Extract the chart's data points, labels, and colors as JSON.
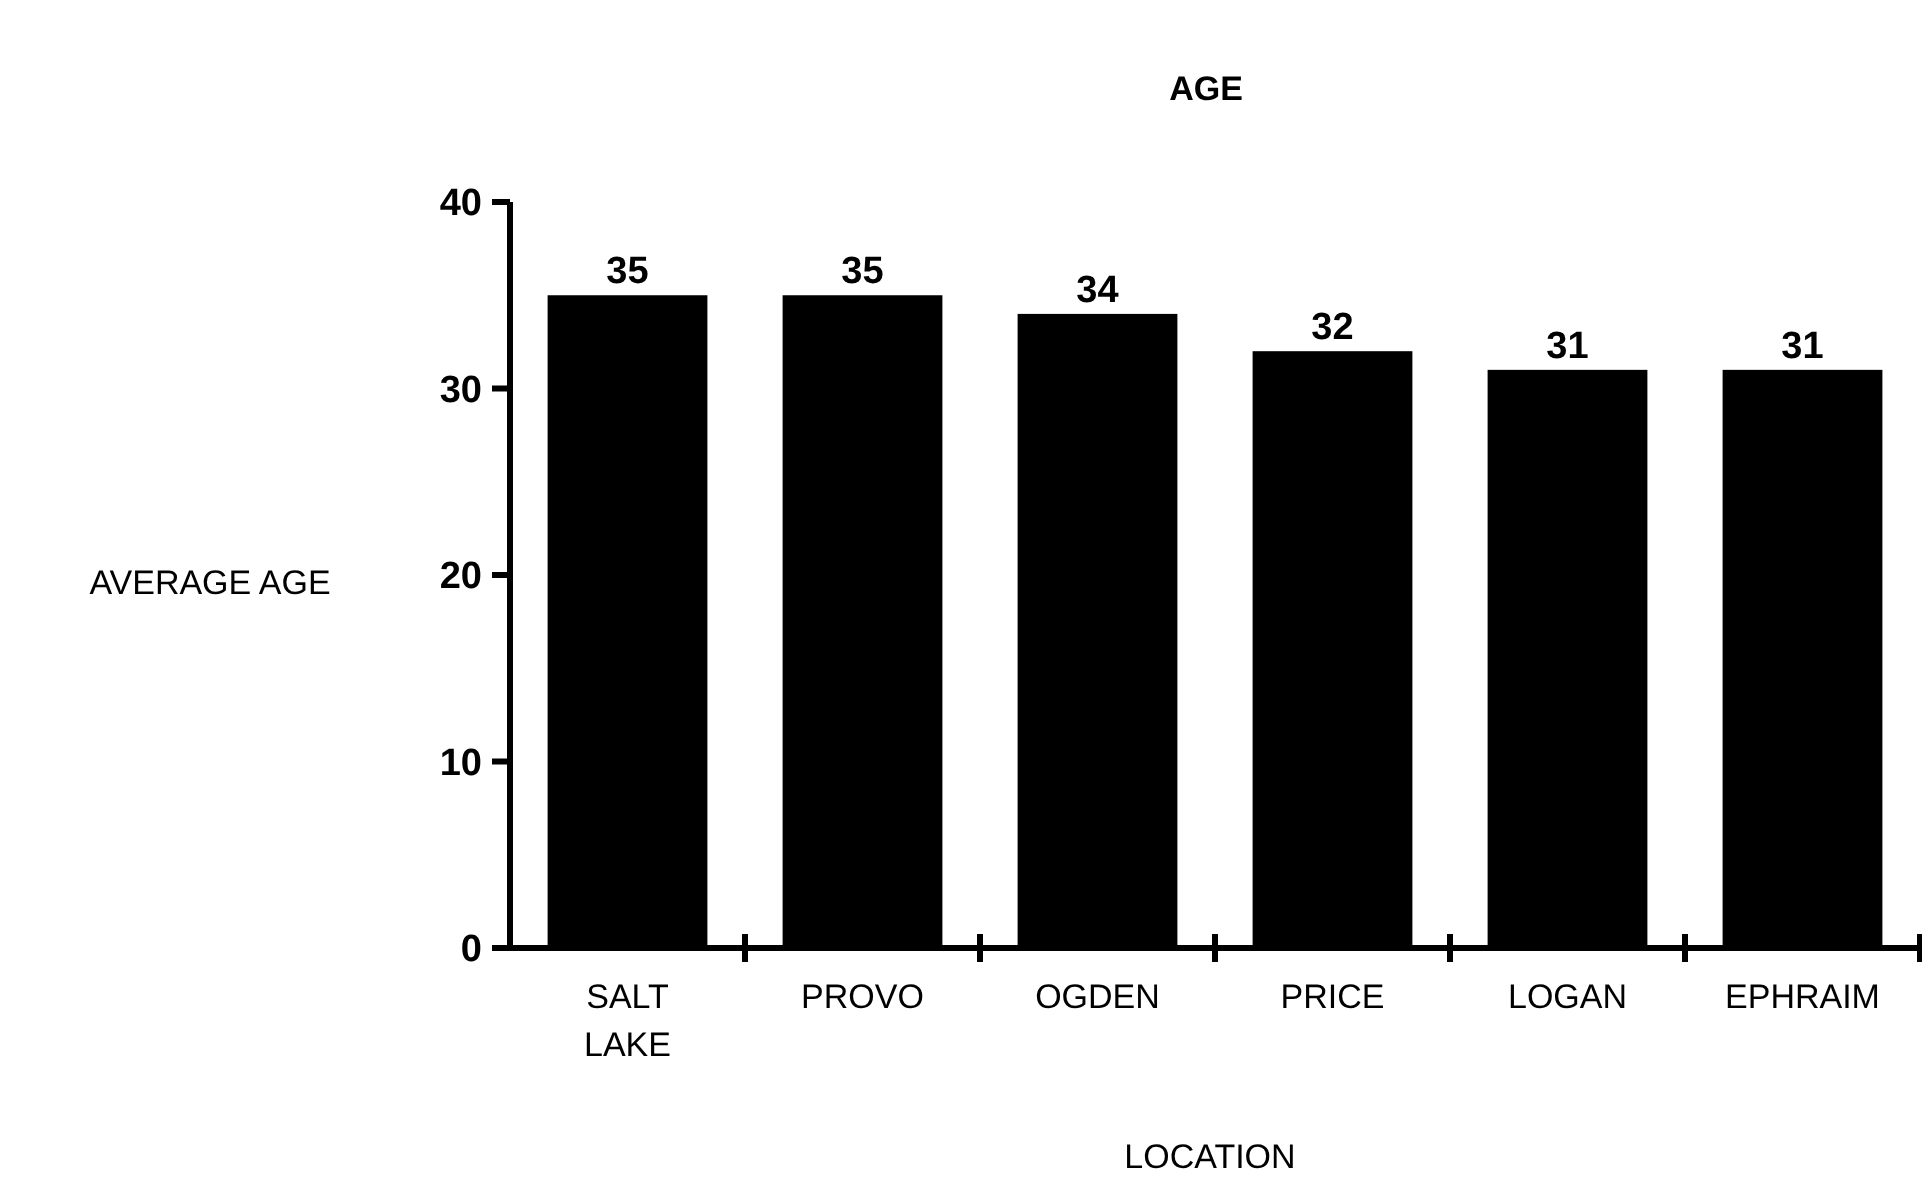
{
  "chart_data": {
    "type": "bar",
    "title": "AGE",
    "xlabel": "LOCATION",
    "ylabel": "AVERAGE AGE",
    "categories": [
      "SALT LAKE",
      "PROVO",
      "OGDEN",
      "PRICE",
      "LOGAN",
      "EPHRAIM"
    ],
    "values": [
      35,
      35,
      34,
      32,
      31,
      31
    ],
    "color": "#000000",
    "ylim": [
      0,
      40
    ],
    "yticks": [
      0,
      10,
      20,
      30,
      40
    ],
    "data_labels": true
  }
}
